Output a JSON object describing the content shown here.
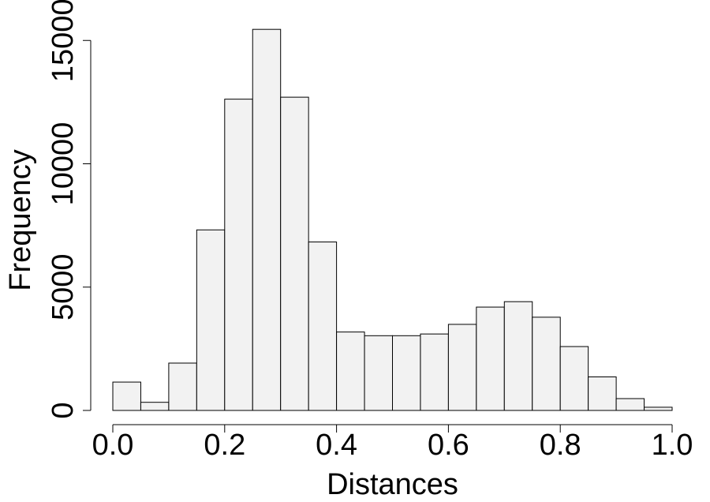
{
  "chart_data": {
    "type": "bar",
    "title": "",
    "xlabel": "Distances",
    "ylabel": "Frequency",
    "xlim": [
      0.0,
      1.0
    ],
    "ylim": [
      0,
      15500
    ],
    "bin_width": 0.05,
    "bins": [
      {
        "x0": 0.0,
        "x1": 0.05,
        "count": 1150
      },
      {
        "x0": 0.05,
        "x1": 0.1,
        "count": 330
      },
      {
        "x0": 0.1,
        "x1": 0.15,
        "count": 1920
      },
      {
        "x0": 0.15,
        "x1": 0.2,
        "count": 7320
      },
      {
        "x0": 0.2,
        "x1": 0.25,
        "count": 12620
      },
      {
        "x0": 0.25,
        "x1": 0.3,
        "count": 15450
      },
      {
        "x0": 0.3,
        "x1": 0.35,
        "count": 12700
      },
      {
        "x0": 0.35,
        "x1": 0.4,
        "count": 6830
      },
      {
        "x0": 0.4,
        "x1": 0.45,
        "count": 3180
      },
      {
        "x0": 0.45,
        "x1": 0.5,
        "count": 3030
      },
      {
        "x0": 0.5,
        "x1": 0.55,
        "count": 3030
      },
      {
        "x0": 0.55,
        "x1": 0.6,
        "count": 3100
      },
      {
        "x0": 0.6,
        "x1": 0.65,
        "count": 3490
      },
      {
        "x0": 0.65,
        "x1": 0.7,
        "count": 4190
      },
      {
        "x0": 0.7,
        "x1": 0.75,
        "count": 4410
      },
      {
        "x0": 0.75,
        "x1": 0.8,
        "count": 3780
      },
      {
        "x0": 0.8,
        "x1": 0.85,
        "count": 2590
      },
      {
        "x0": 0.85,
        "x1": 0.9,
        "count": 1360
      },
      {
        "x0": 0.9,
        "x1": 0.95,
        "count": 480
      },
      {
        "x0": 0.95,
        "x1": 1.0,
        "count": 130
      }
    ],
    "x_ticks": [
      0.0,
      0.2,
      0.4,
      0.6,
      0.8,
      1.0
    ],
    "x_tick_labels": [
      "0.0",
      "0.2",
      "0.4",
      "0.6",
      "0.8",
      "1.0"
    ],
    "y_ticks": [
      0,
      5000,
      10000,
      15000
    ],
    "y_tick_labels": [
      "0",
      "5000",
      "10000",
      "15000"
    ],
    "grid": false,
    "colors": {
      "bar_fill": "#f2f2f2",
      "bar_stroke": "#000000"
    }
  }
}
